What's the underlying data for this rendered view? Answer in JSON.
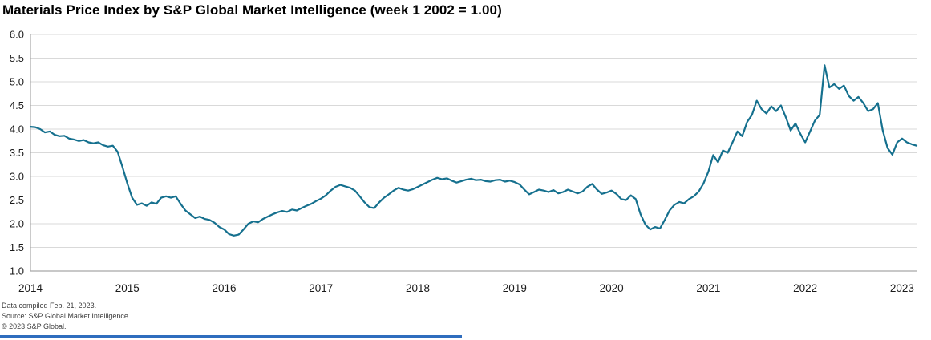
{
  "title": "Materials Price Index by S&P Global Market Intelligence (week 1 2002 = 1.00)",
  "footer": {
    "line1": "Data compiled Feb. 21, 2023.",
    "line2": "Source: S&P Global Market Intelligence.",
    "line3": "© 2023 S&P Global."
  },
  "colors": {
    "line": "#15708E",
    "grid": "#d9d9d9",
    "axis": "#a6a6a6",
    "tick_label": "#1a1a1a",
    "accent_bar": "#2f6dbe"
  },
  "chart_data": {
    "type": "line",
    "title": "Materials Price Index by S&P Global Market Intelligence (week 1 2002 = 1.00)",
    "xlabel": "",
    "ylabel": "",
    "xlim": [
      2014,
      2023.15
    ],
    "ylim": [
      1.0,
      6.0
    ],
    "grid": true,
    "legend": "none",
    "xticks": [
      2014,
      2015,
      2016,
      2017,
      2018,
      2019,
      2020,
      2021,
      2022,
      2023
    ],
    "yticks": [
      "6.0",
      "5.5",
      "5.0",
      "4.5",
      "4.0",
      "3.5",
      "3.0",
      "2.5",
      "2.0",
      "1.5",
      "1.0"
    ],
    "series_name": "Materials Price Index",
    "x_start": 2014.0,
    "x_step": 0.05,
    "values": [
      4.05,
      4.04,
      4.0,
      3.93,
      3.95,
      3.88,
      3.85,
      3.86,
      3.8,
      3.78,
      3.75,
      3.77,
      3.72,
      3.7,
      3.72,
      3.66,
      3.63,
      3.65,
      3.52,
      3.2,
      2.85,
      2.55,
      2.4,
      2.43,
      2.38,
      2.45,
      2.42,
      2.55,
      2.58,
      2.55,
      2.58,
      2.42,
      2.28,
      2.2,
      2.12,
      2.15,
      2.1,
      2.08,
      2.02,
      1.93,
      1.88,
      1.78,
      1.75,
      1.77,
      1.88,
      2.0,
      2.05,
      2.03,
      2.1,
      2.15,
      2.2,
      2.24,
      2.27,
      2.25,
      2.3,
      2.28,
      2.33,
      2.38,
      2.42,
      2.48,
      2.53,
      2.6,
      2.7,
      2.78,
      2.82,
      2.79,
      2.76,
      2.7,
      2.58,
      2.45,
      2.35,
      2.33,
      2.45,
      2.55,
      2.62,
      2.7,
      2.76,
      2.72,
      2.7,
      2.73,
      2.78,
      2.83,
      2.88,
      2.93,
      2.97,
      2.94,
      2.96,
      2.91,
      2.87,
      2.9,
      2.93,
      2.95,
      2.92,
      2.93,
      2.9,
      2.89,
      2.92,
      2.93,
      2.89,
      2.91,
      2.88,
      2.83,
      2.72,
      2.62,
      2.67,
      2.72,
      2.7,
      2.67,
      2.71,
      2.64,
      2.67,
      2.72,
      2.68,
      2.64,
      2.68,
      2.78,
      2.84,
      2.72,
      2.63,
      2.66,
      2.7,
      2.63,
      2.52,
      2.5,
      2.6,
      2.52,
      2.2,
      1.98,
      1.88,
      1.93,
      1.9,
      2.08,
      2.28,
      2.4,
      2.46,
      2.43,
      2.52,
      2.58,
      2.68,
      2.85,
      3.1,
      3.45,
      3.3,
      3.55,
      3.5,
      3.72,
      3.95,
      3.85,
      4.15,
      4.3,
      4.6,
      4.42,
      4.33,
      4.48,
      4.38,
      4.5,
      4.25,
      3.97,
      4.12,
      3.9,
      3.72,
      3.95,
      4.18,
      4.3,
      5.35,
      4.88,
      4.95,
      4.85,
      4.92,
      4.7,
      4.6,
      4.68,
      4.55,
      4.38,
      4.42,
      4.55,
      3.98,
      3.6,
      3.46,
      3.72,
      3.8,
      3.72,
      3.68,
      3.65
    ]
  }
}
